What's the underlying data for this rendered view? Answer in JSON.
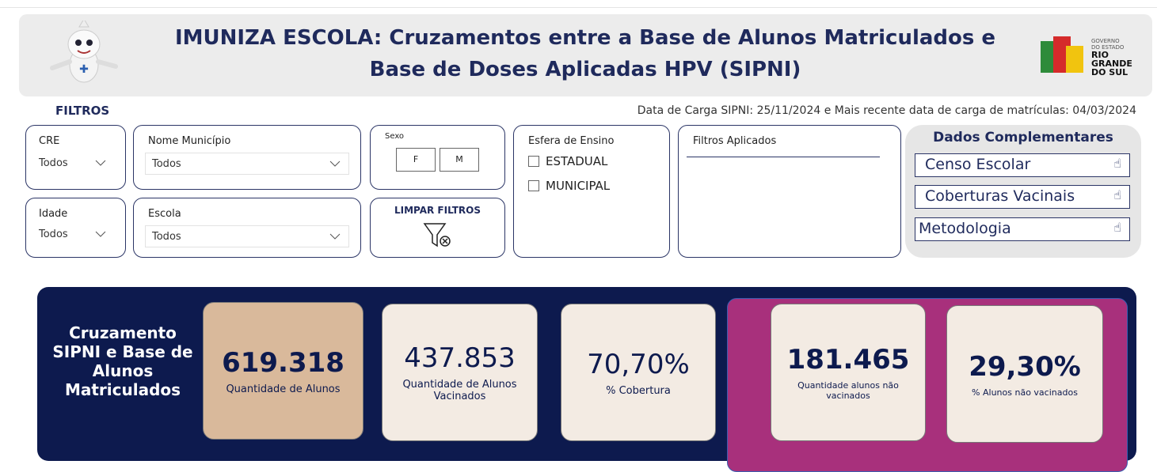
{
  "header": {
    "title": "IMUNIZA ESCOLA: Cruzamentos entre a Base de Alunos Matriculados e Base de Doses Aplicadas HPV (SIPNI)",
    "logo": {
      "line1": "GOVERNO",
      "line2": "DO ESTADO",
      "line3": "RIO",
      "line4": "GRANDE",
      "line5": "DO SUL"
    }
  },
  "filters": {
    "title": "FILTROS",
    "load_info": "Data de Carga SIPNI: 25/11/2024 e Mais recente data de carga de matrículas: 04/03/2024",
    "cre": {
      "label": "CRE",
      "value": "Todos"
    },
    "municipio": {
      "label": "Nome Município",
      "value": "Todos"
    },
    "sexo": {
      "label": "Sexo",
      "options": [
        "F",
        "M"
      ]
    },
    "esfera": {
      "label": "Esfera de Ensino",
      "options": [
        "ESTADUAL",
        "MUNICIPAL"
      ]
    },
    "aplicados": {
      "label": "Filtros Aplicados"
    },
    "idade": {
      "label": "Idade",
      "value": "Todos"
    },
    "escola": {
      "label": "Escola",
      "value": "Todos"
    },
    "clear": "LIMPAR FILTROS"
  },
  "complementares": {
    "title": "Dados Complementares",
    "links": [
      "Censo Escolar",
      "Coberturas Vacinais",
      "Metodologia"
    ]
  },
  "kpis": {
    "title": "Cruzamento SIPNI e Base de Alunos Matriculados",
    "cards": [
      {
        "value": "619.318",
        "label": "Quantidade de Alunos"
      },
      {
        "value": "437.853",
        "label": "Quantidade de Alunos Vacinados"
      },
      {
        "value": "70,70%",
        "label": "% Cobertura"
      },
      {
        "value": "181.465",
        "label": "Quantidade alunos não vacinados"
      },
      {
        "value": "29,30%",
        "label": "% Alunos não vacinados"
      }
    ]
  }
}
